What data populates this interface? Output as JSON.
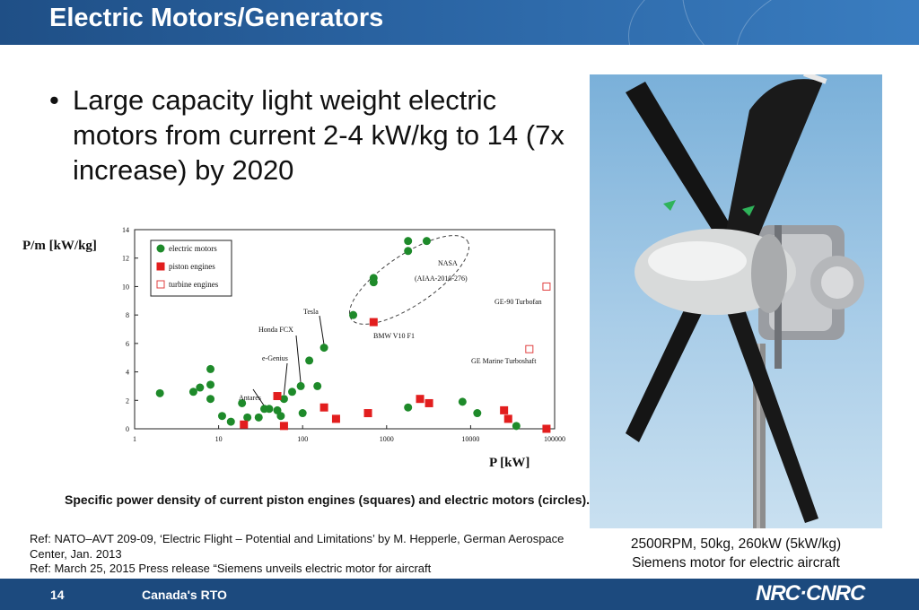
{
  "header": {
    "title": "Electric Motors/Generators"
  },
  "bullet": {
    "text": "Large capacity light weight electric motors from current 2-4 kW/kg to 14 (7x increase) by 2020"
  },
  "chart_caption": "Specific power density of current piston engines (squares) and electric motors (circles).",
  "photo_caption": [
    "2500RPM, 50kg, 260kW (5kW/kg)",
    "Siemens motor for electric aircraft"
  ],
  "refs": [
    "Ref: NATO–AVT 209-09, ‘Electric Flight – Potential and Limitations’ by M. Hepperle, German Aerospace Center, Jan. 2013",
    "Ref: March 25, 2015 Press release “Siemens unveils electric motor for aircraft"
  ],
  "footer": {
    "page": "14",
    "label": "Canada's RTO",
    "logo": "NRC·CNRC"
  },
  "colors": {
    "header": "#2a64a3",
    "footer": "#1c4a7e",
    "motor": "#1e8a2a",
    "piston": "#e21e1e",
    "turbine": "#e04040"
  },
  "chart_data": {
    "type": "scatter",
    "title": "",
    "xlabel": "P [kW]",
    "ylabel": "P/m [kW/kg]",
    "xscale": "log",
    "xlim": [
      1,
      100000
    ],
    "ylim": [
      0,
      14
    ],
    "grid": false,
    "legend_position": "top-left",
    "x_ticks": [
      "1",
      "10",
      "100",
      "1000",
      "10000",
      "100000"
    ],
    "y_ticks": [
      "0",
      "2",
      "4",
      "6",
      "8",
      "10",
      "12",
      "14"
    ],
    "series": [
      {
        "name": "electric motors",
        "marker": "circle-filled",
        "points": [
          [
            2,
            2.5
          ],
          [
            5,
            2.6
          ],
          [
            6,
            2.9
          ],
          [
            8,
            4.2
          ],
          [
            8,
            3.1
          ],
          [
            8,
            2.1
          ],
          [
            11,
            0.9
          ],
          [
            14,
            0.5
          ],
          [
            19,
            1.8
          ],
          [
            22,
            0.8
          ],
          [
            30,
            0.8
          ],
          [
            35,
            1.4
          ],
          [
            40,
            1.4
          ],
          [
            50,
            1.3
          ],
          [
            55,
            0.9
          ],
          [
            60,
            2.1
          ],
          [
            75,
            2.6
          ],
          [
            95,
            3.0
          ],
          [
            100,
            1.1
          ],
          [
            120,
            4.8
          ],
          [
            150,
            3.0
          ],
          [
            180,
            5.7
          ],
          [
            400,
            8.0
          ],
          [
            700,
            10.3
          ],
          [
            700,
            10.6
          ],
          [
            1800,
            13.2
          ],
          [
            1800,
            12.5
          ],
          [
            3000,
            13.2
          ],
          [
            1800,
            1.5
          ],
          [
            8000,
            1.9
          ],
          [
            12000,
            1.1
          ],
          [
            35000,
            0.2
          ]
        ]
      },
      {
        "name": "piston engines",
        "marker": "square-filled",
        "points": [
          [
            20,
            0.3
          ],
          [
            50,
            2.3
          ],
          [
            60,
            0.2
          ],
          [
            180,
            1.5
          ],
          [
            250,
            0.7
          ],
          [
            700,
            7.5
          ],
          [
            600,
            1.1
          ],
          [
            2500,
            2.1
          ],
          [
            3200,
            1.8
          ],
          [
            25000,
            1.3
          ],
          [
            28000,
            0.7
          ],
          [
            80000,
            0.0
          ]
        ]
      },
      {
        "name": "turbine engines",
        "marker": "square-open",
        "points": [
          [
            80000,
            10.0
          ],
          [
            50000,
            5.6
          ]
        ]
      }
    ],
    "annotations": [
      {
        "text": "Antares"
      },
      {
        "text": "e-Genius"
      },
      {
        "text": "Honda FCX"
      },
      {
        "text": "Tesla"
      },
      {
        "text": "NASA"
      },
      {
        "text": "(AIAA-2010-276)"
      },
      {
        "text": "BMW V10 F1"
      },
      {
        "text": "GE-90 Turbofan"
      },
      {
        "text": "GE Marine Turboshaft"
      }
    ]
  }
}
